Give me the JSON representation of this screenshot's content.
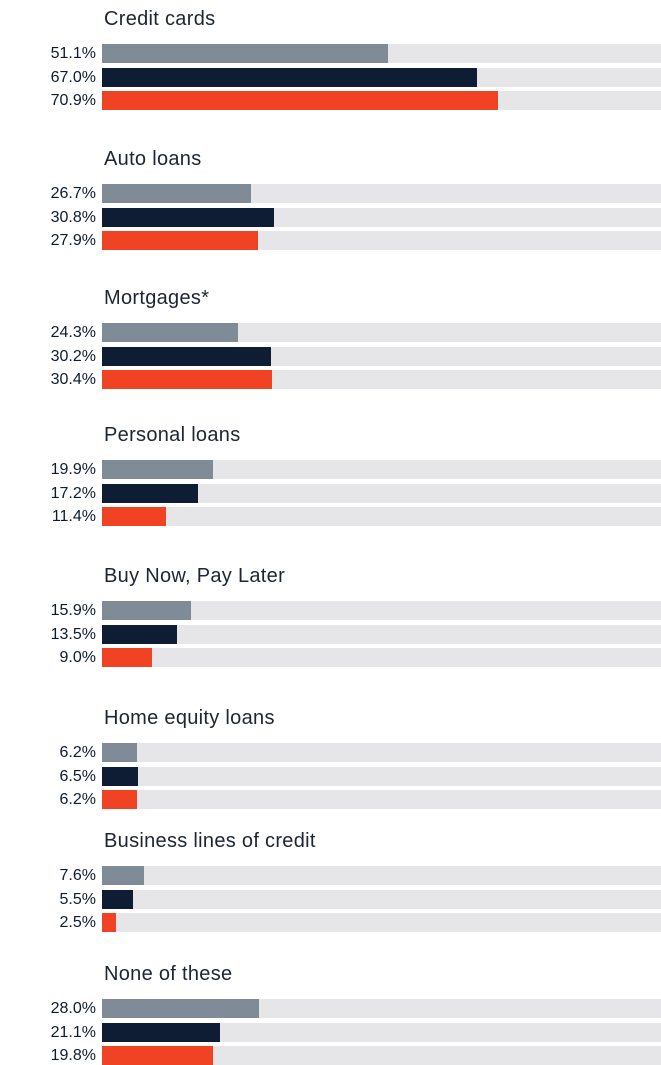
{
  "colors": {
    "track": "#e6e6e8",
    "series": [
      "#7f8c98",
      "#0e1d33",
      "#f04323"
    ]
  },
  "chart_data": {
    "type": "bar",
    "orientation": "horizontal",
    "xlim": [
      0,
      100
    ],
    "categories": [
      {
        "title": "Credit cards",
        "labels": [
          "51.1%",
          "67.0%",
          "70.9%"
        ],
        "values": [
          51.1,
          67.0,
          70.9
        ]
      },
      {
        "title": "Auto loans",
        "labels": [
          "26.7%",
          "30.8%",
          "27.9%"
        ],
        "values": [
          26.7,
          30.8,
          27.9
        ]
      },
      {
        "title": "Mortgages*",
        "labels": [
          "24.3%",
          "30.2%",
          "30.4%"
        ],
        "values": [
          24.3,
          30.2,
          30.4
        ]
      },
      {
        "title": "Personal loans",
        "labels": [
          "19.9%",
          "17.2%",
          "11.4%"
        ],
        "values": [
          19.9,
          17.2,
          11.4
        ]
      },
      {
        "title": "Buy Now, Pay Later",
        "labels": [
          "15.9%",
          "13.5%",
          "9.0%"
        ],
        "values": [
          15.9,
          13.5,
          9.0
        ]
      },
      {
        "title": "Home equity loans",
        "labels": [
          "6.2%",
          "6.5%",
          "6.2%"
        ],
        "values": [
          6.2,
          6.5,
          6.2
        ]
      },
      {
        "title": "Business lines of credit",
        "labels": [
          "7.6%",
          "5.5%",
          "2.5%"
        ],
        "values": [
          7.6,
          5.5,
          2.5
        ]
      },
      {
        "title": "None of these",
        "labels": [
          "28.0%",
          "21.1%",
          "19.8%"
        ],
        "values": [
          28.0,
          21.1,
          19.8
        ]
      }
    ]
  }
}
